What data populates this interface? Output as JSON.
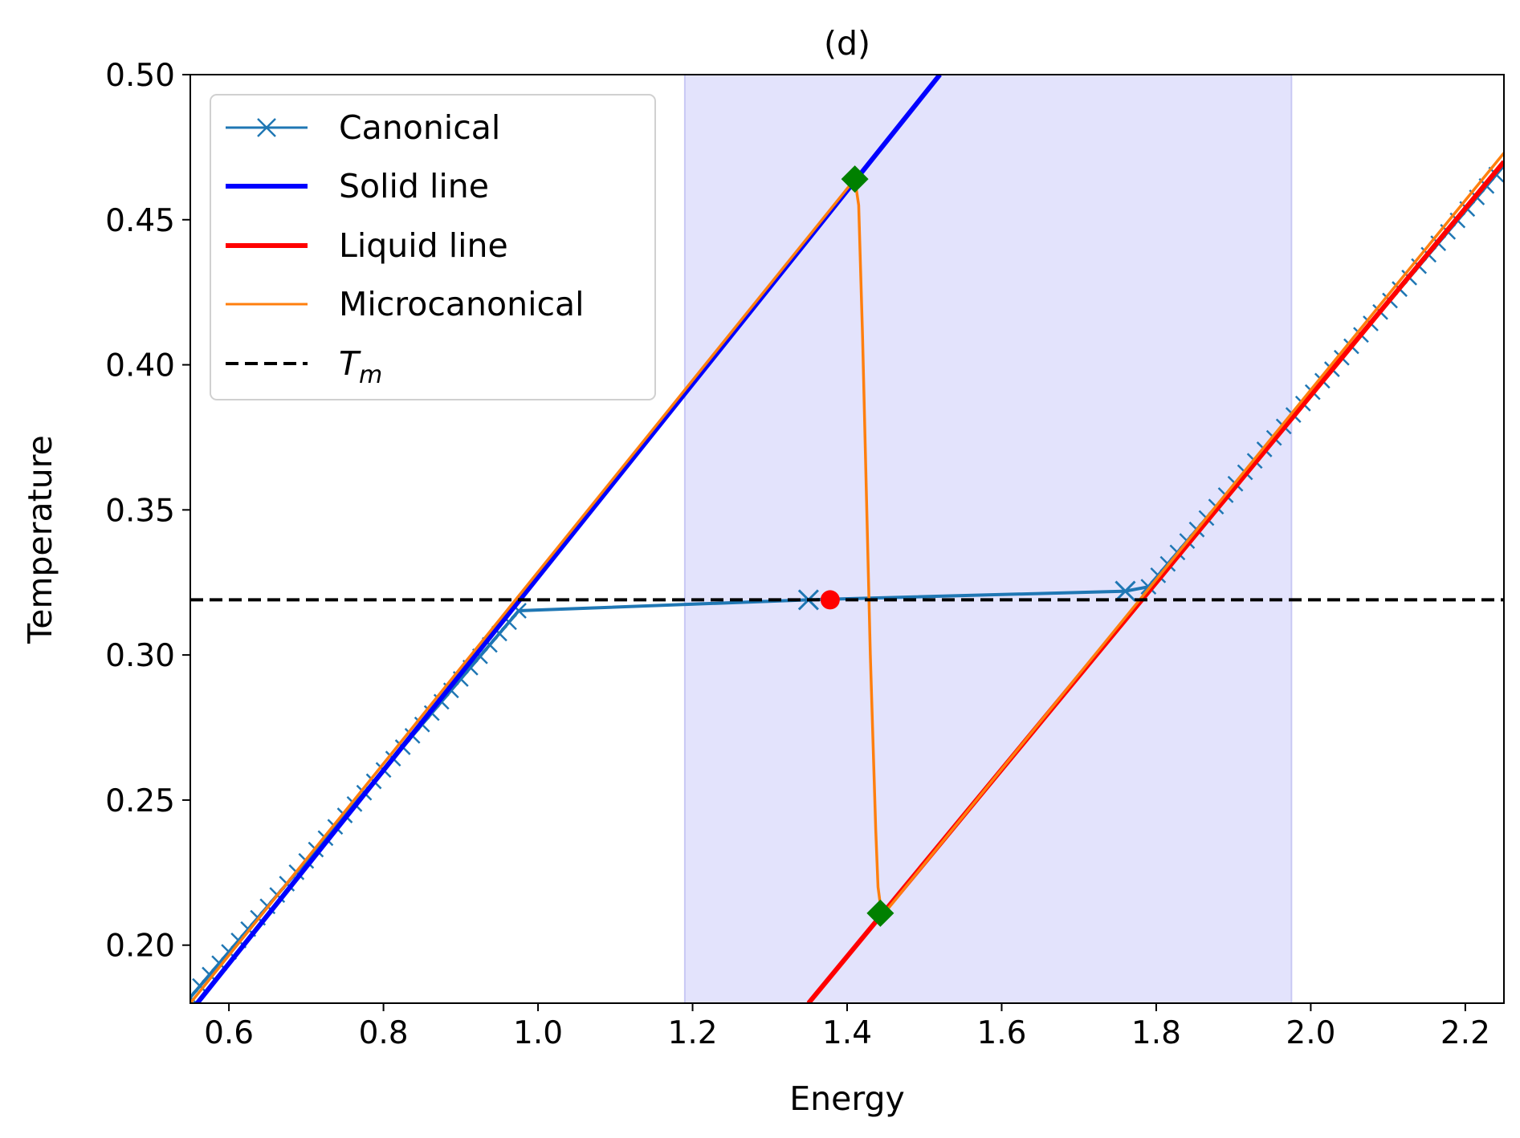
{
  "chart_data": {
    "type": "line",
    "title": "(d)",
    "xlabel": "Energy",
    "ylabel": "Temperature",
    "xlim": [
      0.55,
      2.25
    ],
    "ylim": [
      0.18,
      0.5
    ],
    "grid": false,
    "legend_position": "top-left",
    "xticks": [
      0.6,
      0.8,
      1.0,
      1.2,
      1.4,
      1.6,
      1.8,
      2.0,
      2.2
    ],
    "xtick_labels": [
      "0.6",
      "0.8",
      "1.0",
      "1.2",
      "1.4",
      "1.6",
      "1.8",
      "2.0",
      "2.2"
    ],
    "yticks": [
      0.2,
      0.25,
      0.3,
      0.35,
      0.4,
      0.45,
      0.5
    ],
    "ytick_labels": [
      "0.20",
      "0.25",
      "0.30",
      "0.35",
      "0.40",
      "0.45",
      "0.50"
    ],
    "shaded_region": {
      "x": [
        1.19,
        1.975
      ],
      "color": "#e3e3fc",
      "edge_color": "#c8c8f4"
    },
    "series": [
      {
        "name": "Solid line",
        "color": "#0000ff",
        "width": 3,
        "x": [
          0.55,
          1.52
        ],
        "y": [
          0.177,
          0.5
        ]
      },
      {
        "name": "Liquid line",
        "color": "#ff0000",
        "width": 3,
        "x": [
          1.35,
          2.25
        ],
        "y": [
          0.18,
          0.47
        ]
      },
      {
        "name": "Microcanonical",
        "color": "#ff7f0e",
        "width": 1.5,
        "x": [
          0.55,
          1.41,
          1.415,
          1.42,
          1.43,
          1.437,
          1.44,
          1.445,
          2.25
        ],
        "y": [
          0.18,
          0.464,
          0.455,
          0.41,
          0.3,
          0.24,
          0.22,
          0.21,
          0.473
        ]
      },
      {
        "name": "Canonical",
        "color": "#1f77b4",
        "width": 1.5,
        "marker": "x",
        "x_step": 0.0125,
        "lower_branch": {
          "x_start": 0.55,
          "x_end": 0.975,
          "y_start": 0.182,
          "slope": 0.3135
        },
        "upper_branch": {
          "x_start": 1.79,
          "x_end": 2.25,
          "y_start": 0.3235,
          "slope": 0.3157
        },
        "transition": {
          "x": [
            0.975,
            1.35,
            1.76,
            1.79
          ],
          "y": [
            0.3153,
            0.319,
            0.322,
            0.3235
          ]
        }
      },
      {
        "name": "T_m",
        "label_main": "T",
        "label_sub": "m",
        "color": "#000000",
        "width": 2,
        "dashed": true,
        "y": 0.319
      }
    ],
    "points": [
      {
        "name": "critical-point",
        "x": 1.378,
        "y": 0.319,
        "color": "#ff0000",
        "shape": "circle"
      },
      {
        "name": "spinodal-upper",
        "x": 1.41,
        "y": 0.464,
        "color": "#008000",
        "shape": "diamond"
      },
      {
        "name": "spinodal-lower",
        "x": 1.443,
        "y": 0.211,
        "color": "#008000",
        "shape": "diamond"
      }
    ],
    "legend": [
      "Canonical",
      "Solid line",
      "Liquid line",
      "Microcanonical"
    ]
  }
}
